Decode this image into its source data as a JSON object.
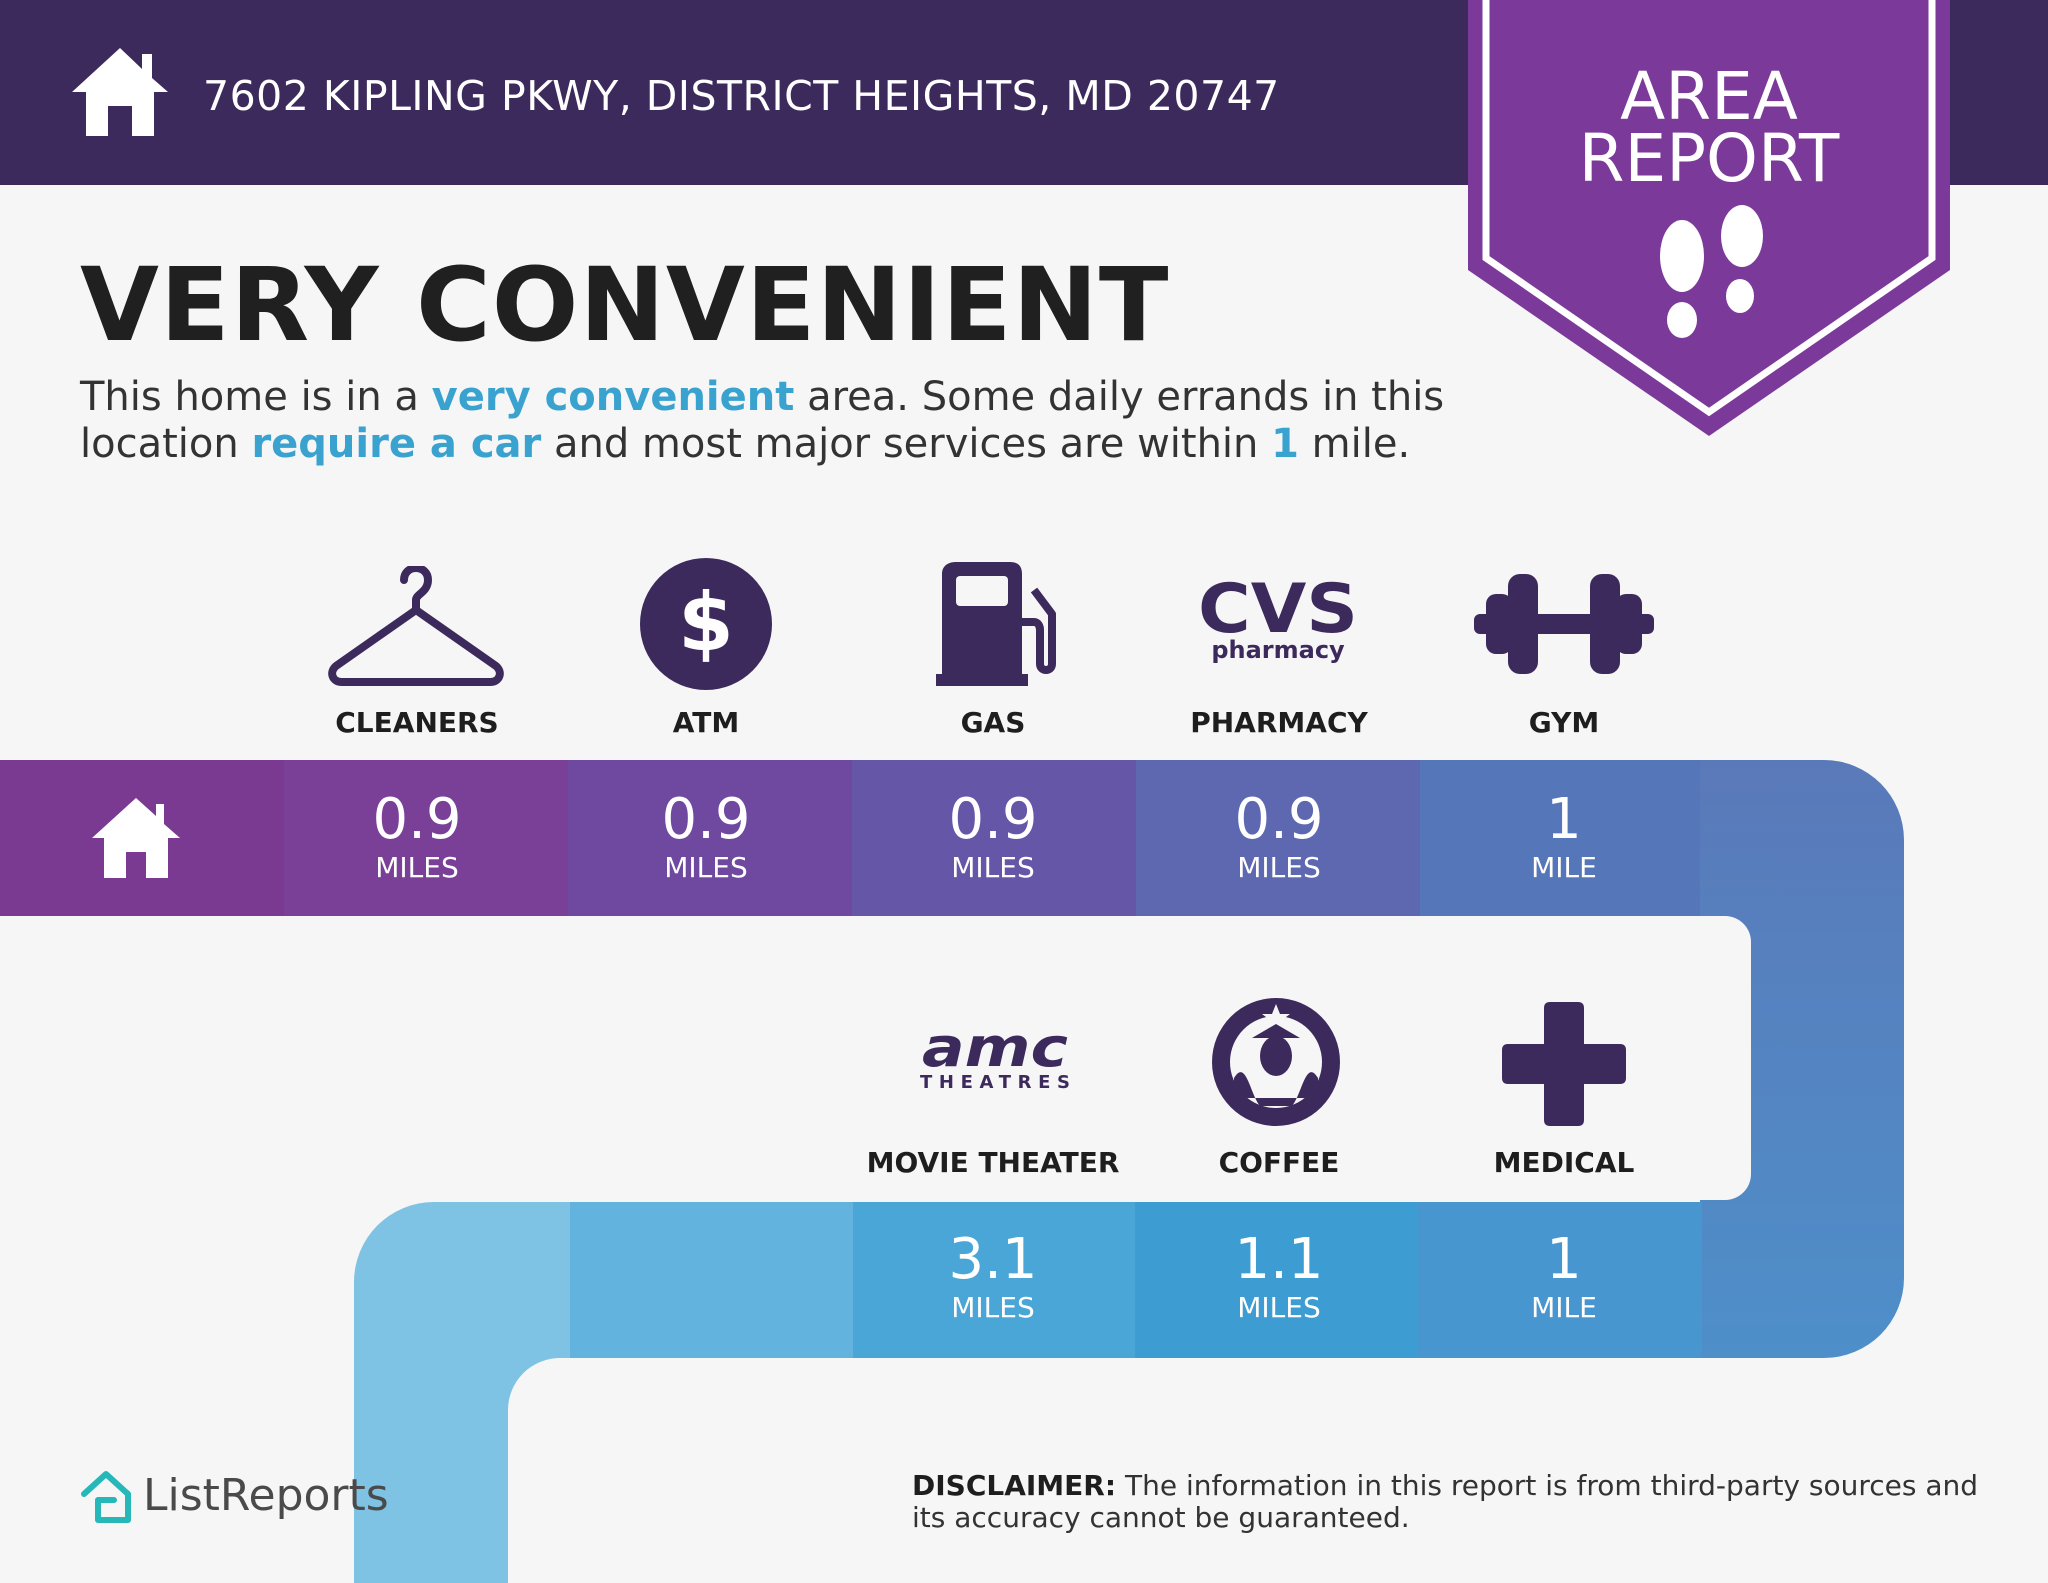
{
  "header": {
    "address": "7602 KIPLING PKWY, DISTRICT HEIGHTS, MD 20747",
    "home_icon": "house-icon",
    "color": "#3d2a5c"
  },
  "badge": {
    "line1": "AREA",
    "line2": "REPORT",
    "icon": "footprints-icon",
    "color": "#7b3a99"
  },
  "summary": {
    "headline": "VERY CONVENIENT",
    "desc_1": "This home is in a ",
    "desc_hl1": "very convenient",
    "desc_2": " area. Some daily errands in this location ",
    "desc_hl2": "require a car",
    "desc_3": " and most major services are within ",
    "desc_hl3": "1",
    "desc_4": " mile.",
    "highlight_color": "#3aa2cf"
  },
  "row1": [
    {
      "label": "CLEANERS",
      "value": "0.9",
      "unit": "MILES",
      "icon": "hanger-icon"
    },
    {
      "label": "ATM",
      "value": "0.9",
      "unit": "MILES",
      "icon": "dollar-icon"
    },
    {
      "label": "GAS",
      "value": "0.9",
      "unit": "MILES",
      "icon": "gas-pump-icon"
    },
    {
      "label": "PHARMACY",
      "value": "0.9",
      "unit": "MILES",
      "icon": "cvs-logo"
    },
    {
      "label": "GYM",
      "value": "1",
      "unit": "MILE",
      "icon": "dumbbell-icon"
    }
  ],
  "row2": [
    {
      "label": "MOVIE THEATER",
      "value": "3.1",
      "unit": "MILES",
      "icon": "amc-logo"
    },
    {
      "label": "COFFEE",
      "value": "1.1",
      "unit": "MILES",
      "icon": "starbucks-logo"
    },
    {
      "label": "MEDICAL",
      "value": "1",
      "unit": "MILE",
      "icon": "medical-cross-icon"
    }
  ],
  "logos": {
    "cvs_main": "CVS",
    "cvs_sub": "pharmacy",
    "amc_main": "amc",
    "amc_sub": "THEATRES"
  },
  "footer": {
    "brand": "ListReports",
    "disclaimer_label": "DISCLAIMER:",
    "disclaimer_text": " The information in this report is from third-party sources and its accuracy cannot be guaranteed."
  }
}
